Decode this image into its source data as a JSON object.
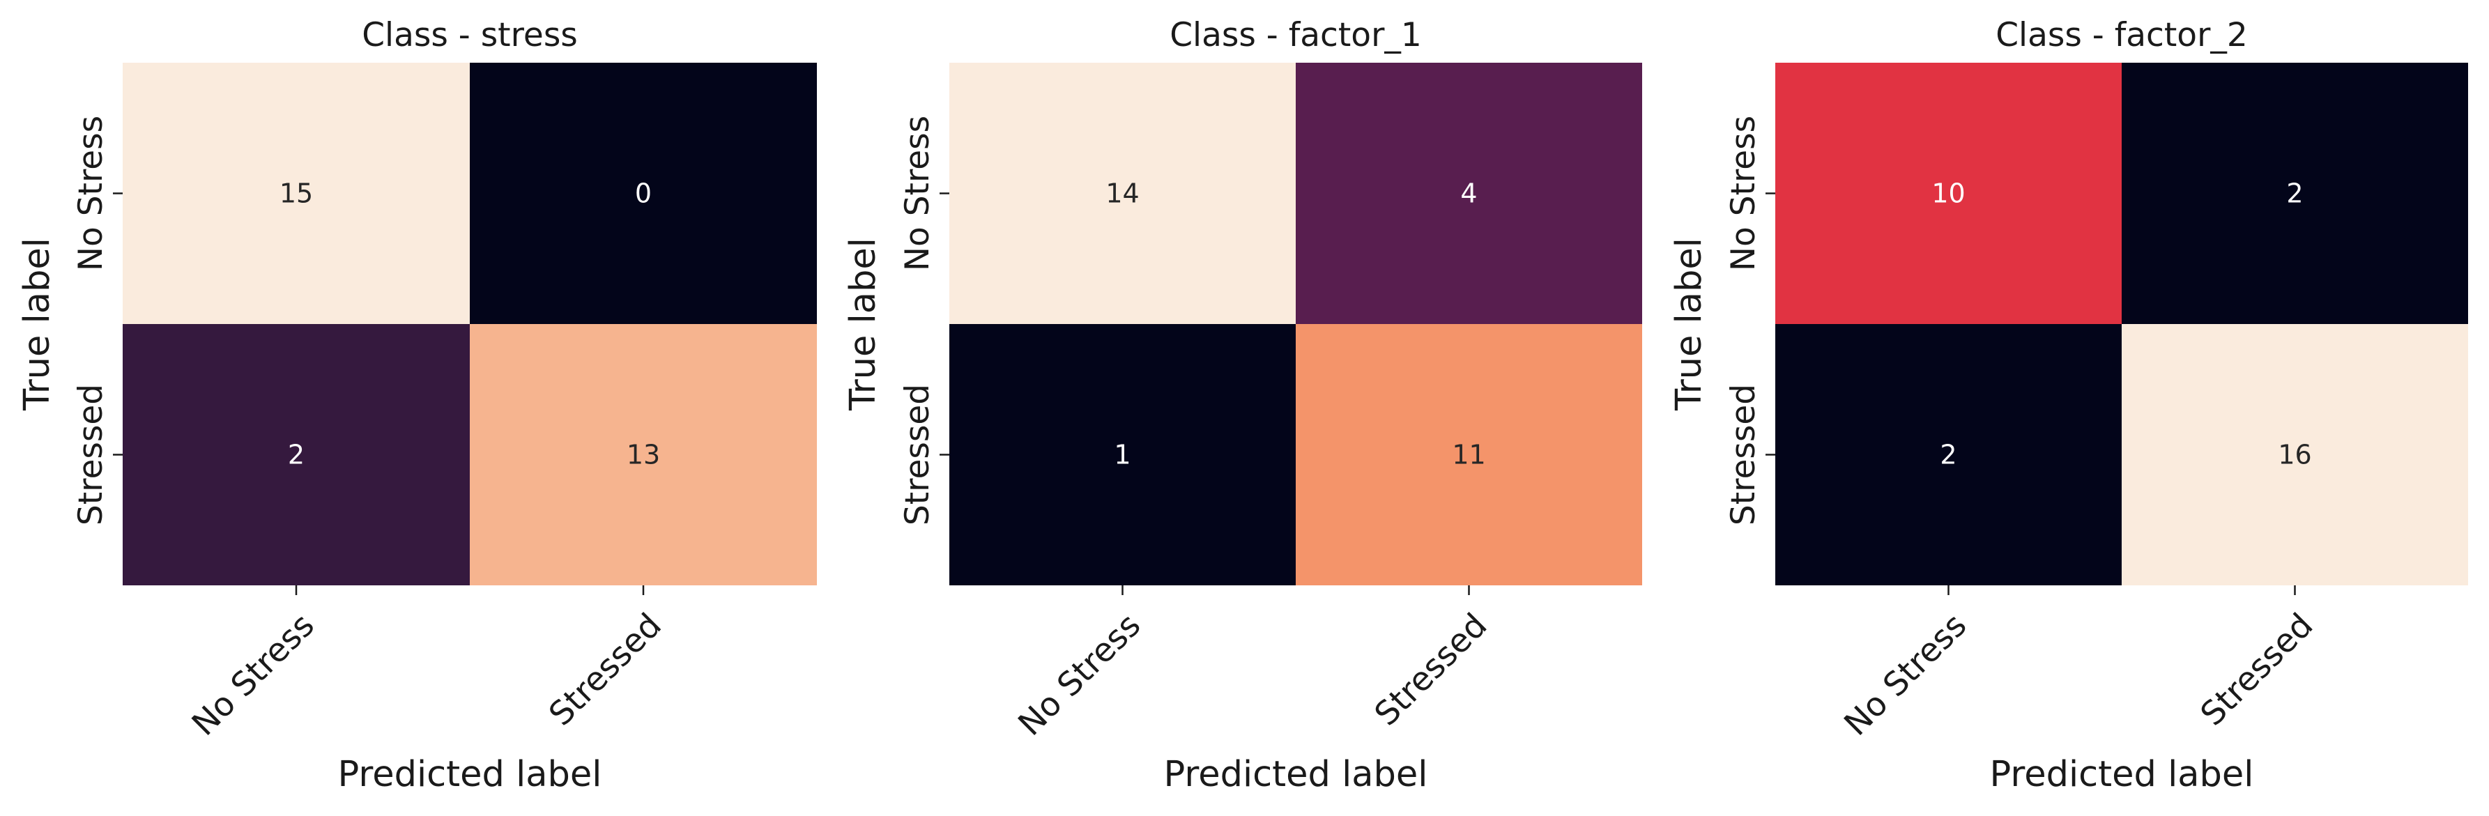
{
  "colors": {
    "background": "#ffffff",
    "text": "#1a1a1a",
    "cell_text_dark": "#262626",
    "cell_text_light": "#ffffff"
  },
  "chart_data": [
    {
      "type": "heatmap",
      "title": "Class - stress",
      "xlabel": "Predicted label",
      "ylabel": "True label",
      "x_categories": [
        "No Stress",
        "Stressed"
      ],
      "y_categories": [
        "No Stress",
        "Stressed"
      ],
      "values": [
        [
          15,
          0
        ],
        [
          2,
          13
        ]
      ],
      "cell_colors": [
        [
          "#faebdd",
          "#03051a"
        ],
        [
          "#35193e",
          "#f6b48f"
        ]
      ],
      "colorbar": false
    },
    {
      "type": "heatmap",
      "title": "Class - factor_1",
      "xlabel": "Predicted label",
      "ylabel": "True label",
      "x_categories": [
        "No Stress",
        "Stressed"
      ],
      "y_categories": [
        "No Stress",
        "Stressed"
      ],
      "values": [
        [
          14,
          4
        ],
        [
          1,
          11
        ]
      ],
      "cell_colors": [
        [
          "#faebdd",
          "#581e4f"
        ],
        [
          "#03051a",
          "#f4946a"
        ]
      ],
      "colorbar": false
    },
    {
      "type": "heatmap",
      "title": "Class - factor_2",
      "xlabel": "Predicted label",
      "ylabel": "True label",
      "x_categories": [
        "No Stress",
        "Stressed"
      ],
      "y_categories": [
        "No Stress",
        "Stressed"
      ],
      "values": [
        [
          10,
          2
        ],
        [
          2,
          16
        ]
      ],
      "cell_colors": [
        [
          "#e13342",
          "#03051a"
        ],
        [
          "#03051a",
          "#faebdd"
        ]
      ],
      "colorbar": false
    }
  ]
}
